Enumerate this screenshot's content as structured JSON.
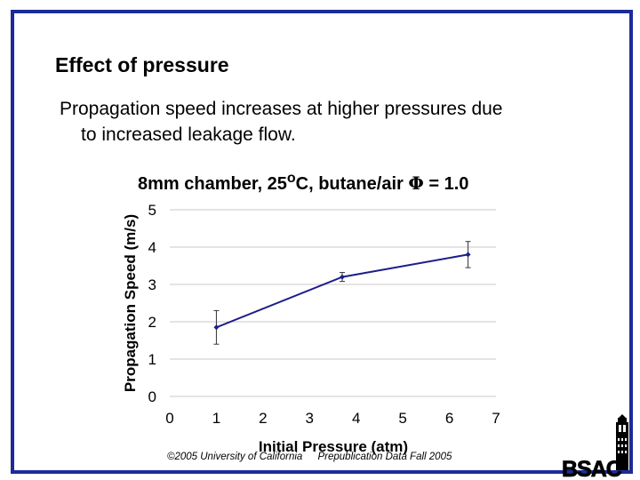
{
  "slide": {
    "title": "Effect of pressure",
    "body_line1": "Propagation speed increases at higher pressures due",
    "body_line2": "to increased leakage flow.",
    "frame_color": "#1c2b99"
  },
  "chart_title": {
    "prefix": "8mm chamber, 25",
    "degree": "o",
    "middle": "C, butane/air ",
    "phi": "Φ",
    "suffix": " = 1.0"
  },
  "chart_data": {
    "type": "line",
    "title": "8mm chamber, 25°C, butane/air Φ = 1.0",
    "xlabel": "Initial Pressure (atm)",
    "ylabel": "Propagation Speed (m/s)",
    "xlim": [
      0,
      7
    ],
    "ylim": [
      0,
      5
    ],
    "xticks": [
      0,
      1,
      2,
      3,
      4,
      5,
      6,
      7
    ],
    "yticks": [
      0,
      1,
      2,
      3,
      4,
      5
    ],
    "grid": true,
    "series": [
      {
        "name": "Propagation Speed",
        "color": "#1c1f8a",
        "x": [
          1,
          3.7,
          6.4
        ],
        "y": [
          1.85,
          3.2,
          3.8
        ],
        "err": [
          0.45,
          0.12,
          0.35
        ]
      }
    ]
  },
  "footer": {
    "copyright": "©2005 University of California",
    "note": "Prepublication Data Fall 2005"
  },
  "logo": {
    "text": "BSAC"
  }
}
